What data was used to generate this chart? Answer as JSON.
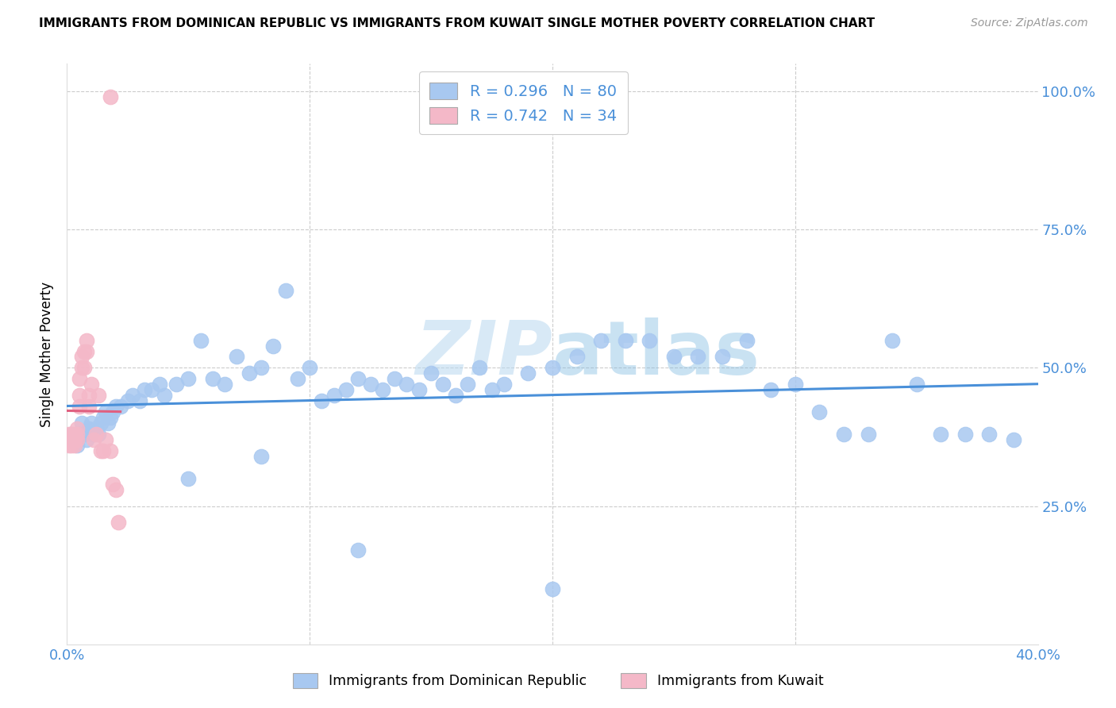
{
  "title": "IMMIGRANTS FROM DOMINICAN REPUBLIC VS IMMIGRANTS FROM KUWAIT SINGLE MOTHER POVERTY CORRELATION CHART",
  "source": "Source: ZipAtlas.com",
  "ylabel": "Single Mother Poverty",
  "xlim": [
    0.0,
    0.4
  ],
  "ylim": [
    0.0,
    1.05
  ],
  "watermark": "ZIPatlas",
  "legend_r_blue": "0.296",
  "legend_n_blue": "80",
  "legend_r_pink": "0.742",
  "legend_n_pink": "34",
  "blue_color": "#a8c8f0",
  "pink_color": "#f4b8c8",
  "line_blue": "#4a90d9",
  "line_pink": "#e06080",
  "legend_label_blue": "Immigrants from Dominican Republic",
  "legend_label_pink": "Immigrants from Kuwait",
  "blue_x": [
    0.002,
    0.003,
    0.004,
    0.005,
    0.006,
    0.007,
    0.008,
    0.009,
    0.01,
    0.011,
    0.012,
    0.013,
    0.014,
    0.015,
    0.016,
    0.017,
    0.018,
    0.019,
    0.02,
    0.022,
    0.025,
    0.027,
    0.03,
    0.032,
    0.035,
    0.038,
    0.04,
    0.045,
    0.05,
    0.055,
    0.06,
    0.065,
    0.07,
    0.075,
    0.08,
    0.085,
    0.09,
    0.095,
    0.1,
    0.105,
    0.11,
    0.115,
    0.12,
    0.125,
    0.13,
    0.135,
    0.14,
    0.145,
    0.15,
    0.155,
    0.16,
    0.165,
    0.17,
    0.175,
    0.18,
    0.19,
    0.2,
    0.21,
    0.22,
    0.23,
    0.24,
    0.25,
    0.26,
    0.27,
    0.28,
    0.29,
    0.3,
    0.31,
    0.32,
    0.33,
    0.34,
    0.35,
    0.36,
    0.37,
    0.38,
    0.39,
    0.05,
    0.08,
    0.12,
    0.2
  ],
  "blue_y": [
    0.38,
    0.37,
    0.36,
    0.38,
    0.4,
    0.38,
    0.37,
    0.39,
    0.4,
    0.38,
    0.39,
    0.38,
    0.4,
    0.41,
    0.42,
    0.4,
    0.41,
    0.42,
    0.43,
    0.43,
    0.44,
    0.45,
    0.44,
    0.46,
    0.46,
    0.47,
    0.45,
    0.47,
    0.48,
    0.55,
    0.48,
    0.47,
    0.52,
    0.49,
    0.5,
    0.54,
    0.64,
    0.48,
    0.5,
    0.44,
    0.45,
    0.46,
    0.48,
    0.47,
    0.46,
    0.48,
    0.47,
    0.46,
    0.49,
    0.47,
    0.45,
    0.47,
    0.5,
    0.46,
    0.47,
    0.49,
    0.5,
    0.52,
    0.55,
    0.55,
    0.55,
    0.52,
    0.52,
    0.52,
    0.55,
    0.46,
    0.47,
    0.42,
    0.38,
    0.38,
    0.55,
    0.47,
    0.38,
    0.38,
    0.38,
    0.37,
    0.3,
    0.34,
    0.17,
    0.1
  ],
  "pink_x": [
    0.001,
    0.001,
    0.002,
    0.002,
    0.002,
    0.003,
    0.003,
    0.003,
    0.004,
    0.004,
    0.004,
    0.005,
    0.005,
    0.005,
    0.006,
    0.006,
    0.007,
    0.007,
    0.008,
    0.008,
    0.009,
    0.009,
    0.01,
    0.011,
    0.012,
    0.013,
    0.014,
    0.015,
    0.016,
    0.018,
    0.019,
    0.02,
    0.021,
    0.018
  ],
  "pink_y": [
    0.38,
    0.36,
    0.38,
    0.37,
    0.36,
    0.38,
    0.37,
    0.36,
    0.39,
    0.38,
    0.37,
    0.45,
    0.48,
    0.43,
    0.5,
    0.52,
    0.5,
    0.53,
    0.53,
    0.55,
    0.43,
    0.45,
    0.47,
    0.37,
    0.38,
    0.45,
    0.35,
    0.35,
    0.37,
    0.35,
    0.29,
    0.28,
    0.22,
    0.99
  ],
  "pink_line_x0": 0.0,
  "pink_line_x1": 0.022,
  "blue_line_x0": 0.0,
  "blue_line_x1": 0.4
}
